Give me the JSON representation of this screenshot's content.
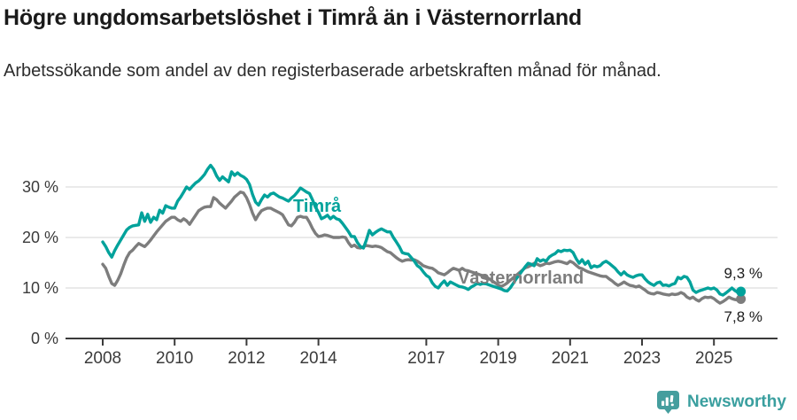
{
  "header": {
    "title": "Högre ungdomsarbetslöshet i Timrå än i Västernorrland",
    "subtitle": "Arbetssökande som andel av den registerbaserade arbetskraften månad för månad."
  },
  "chart_data": {
    "type": "line",
    "title": "Högre ungdomsarbetslöshet i Timrå än i Västernorrland",
    "unit": "%",
    "x_start": "2008-01",
    "x_end": "2025-10",
    "points_per_year": 12,
    "x_tick_years": [
      2008,
      2010,
      2012,
      2014,
      2017,
      2019,
      2021,
      2023,
      2025
    ],
    "y_ticks": [
      0,
      10,
      20,
      30
    ],
    "ylim": [
      0,
      36
    ],
    "grid": true,
    "legend_position": "inline-labels",
    "colors": {
      "timra": "#00a29b",
      "vasternorrland": "#7d7d7d",
      "gridline": "#dddddd",
      "axis": "#3b3b3b",
      "value_label": "#1b1b1b"
    },
    "series": [
      {
        "name": "Timrå",
        "color": "#00a29b",
        "end_label": "9,3 %",
        "end_value": 9.3,
        "values": [
          19.1,
          18.2,
          17.0,
          16.1,
          17.4,
          18.5,
          19.5,
          20.5,
          21.5,
          22.0,
          22.3,
          22.4,
          22.5,
          24.9,
          23.2,
          24.6,
          23.0,
          24.0,
          23.5,
          25.4,
          24.8,
          26.3,
          26.0,
          25.8,
          25.8,
          27.2,
          28.0,
          29.0,
          30.0,
          29.5,
          30.2,
          30.8,
          31.2,
          31.8,
          32.5,
          33.5,
          34.3,
          33.5,
          32.2,
          31.3,
          32.0,
          31.5,
          31.0,
          33.0,
          32.3,
          32.8,
          32.3,
          32.0,
          31.5,
          30.5,
          28.5,
          27.0,
          26.4,
          27.5,
          28.4,
          28.0,
          28.6,
          28.8,
          28.4,
          28.0,
          27.8,
          27.5,
          27.2,
          27.8,
          28.3,
          29.0,
          29.8,
          29.4,
          29.0,
          28.7,
          27.5,
          26.0,
          25.0,
          23.7,
          24.0,
          24.4,
          23.7,
          24.2,
          23.7,
          23.5,
          22.8,
          22.0,
          21.2,
          20.2,
          20.2,
          19.0,
          18.2,
          17.9,
          19.5,
          21.4,
          20.5,
          21.0,
          21.4,
          21.7,
          21.4,
          21.1,
          21.1,
          20.0,
          19.1,
          18.2,
          17.0,
          16.8,
          16.7,
          16.0,
          15.3,
          14.4,
          14.0,
          13.2,
          12.5,
          12.1,
          11.0,
          10.3,
          10.0,
          10.8,
          11.4,
          10.5,
          11.2,
          10.9,
          10.6,
          10.3,
          10.2,
          10.0,
          9.7,
          10.2,
          10.5,
          10.9,
          10.7,
          10.9,
          10.8,
          10.6,
          10.4,
          10.2,
          10.0,
          9.8,
          9.5,
          9.4,
          10.0,
          10.9,
          11.8,
          12.6,
          13.4,
          14.2,
          14.9,
          14.7,
          14.4,
          15.8,
          15.3,
          15.6,
          15.3,
          16.1,
          16.5,
          16.8,
          17.4,
          17.2,
          17.5,
          17.4,
          17.5,
          17.0,
          15.8,
          14.9,
          15.6,
          14.7,
          15.3,
          14.0,
          14.4,
          14.2,
          14.4,
          15.0,
          15.3,
          14.9,
          14.4,
          13.9,
          13.2,
          12.6,
          13.2,
          12.6,
          12.3,
          12.1,
          12.4,
          12.6,
          12.6,
          11.8,
          11.2,
          10.8,
          10.5,
          11.0,
          11.2,
          10.5,
          10.6,
          10.4,
          10.7,
          10.9,
          12.1,
          11.8,
          12.3,
          12.1,
          11.2,
          9.6,
          9.1,
          9.4,
          9.6,
          9.8,
          10.0,
          9.8,
          10.0,
          9.6,
          8.8,
          8.6,
          9.0,
          9.5,
          10.0,
          9.5,
          9.1,
          9.3
        ]
      },
      {
        "name": "Västernorrland",
        "color": "#7d7d7d",
        "end_label": "7,8 %",
        "end_value": 7.8,
        "values": [
          14.7,
          13.9,
          12.3,
          10.9,
          10.5,
          11.5,
          12.8,
          14.5,
          16.0,
          17.0,
          17.5,
          18.2,
          18.8,
          18.5,
          18.2,
          18.8,
          19.5,
          20.3,
          21.1,
          21.8,
          22.5,
          23.2,
          23.6,
          24.0,
          24.0,
          23.5,
          23.2,
          23.7,
          23.3,
          22.6,
          23.5,
          24.4,
          25.3,
          25.7,
          26.0,
          26.1,
          26.1,
          27.9,
          27.5,
          26.8,
          26.3,
          25.8,
          26.5,
          27.2,
          28.0,
          28.5,
          29.0,
          28.8,
          27.9,
          26.5,
          24.8,
          23.5,
          24.5,
          25.3,
          25.6,
          25.8,
          25.8,
          25.5,
          25.2,
          24.9,
          24.5,
          23.5,
          22.5,
          22.3,
          23.0,
          24.0,
          24.2,
          24.0,
          24.0,
          23.0,
          21.8,
          20.8,
          20.2,
          20.3,
          20.5,
          20.4,
          20.2,
          20.0,
          20.0,
          20.0,
          20.1,
          20.0,
          19.0,
          18.2,
          18.5,
          18.0,
          17.9,
          18.2,
          18.4,
          18.3,
          18.2,
          18.3,
          18.2,
          18.0,
          17.6,
          17.2,
          17.0,
          16.5,
          16.0,
          15.6,
          15.3,
          15.5,
          15.6,
          15.5,
          15.6,
          15.3,
          14.9,
          14.4,
          14.2,
          14.0,
          13.9,
          13.5,
          13.0,
          12.8,
          12.6,
          13.0,
          13.5,
          13.9,
          13.7,
          13.5,
          13.9,
          13.5,
          13.4,
          13.2,
          13.0,
          12.8,
          12.6,
          12.4,
          12.2,
          11.8,
          11.4,
          11.0,
          10.6,
          10.3,
          10.6,
          11.0,
          11.5,
          12.0,
          12.5,
          13.0,
          13.5,
          14.0,
          14.2,
          14.5,
          14.9,
          14.7,
          14.4,
          14.6,
          14.9,
          14.8,
          15.0,
          15.2,
          15.3,
          15.2,
          15.0,
          14.8,
          15.3,
          15.0,
          14.5,
          14.0,
          13.8,
          13.5,
          13.2,
          13.0,
          12.8,
          12.6,
          12.4,
          12.3,
          12.3,
          11.8,
          11.4,
          10.9,
          10.5,
          10.8,
          11.2,
          10.8,
          10.5,
          10.4,
          10.2,
          10.4,
          10.0,
          9.6,
          9.1,
          8.9,
          8.8,
          9.1,
          9.0,
          8.8,
          8.7,
          8.6,
          8.8,
          8.7,
          8.8,
          9.1,
          8.8,
          8.2,
          7.9,
          8.2,
          7.7,
          7.4,
          7.9,
          8.2,
          8.1,
          8.2,
          7.9,
          7.4,
          7.0,
          7.3,
          7.7,
          8.2,
          7.9,
          7.7,
          7.6,
          7.8
        ]
      }
    ]
  },
  "footer": {
    "brand": "Newsworthy",
    "brand_color": "#3a9f9f",
    "icon": "bar-chart-speech-bubble"
  }
}
